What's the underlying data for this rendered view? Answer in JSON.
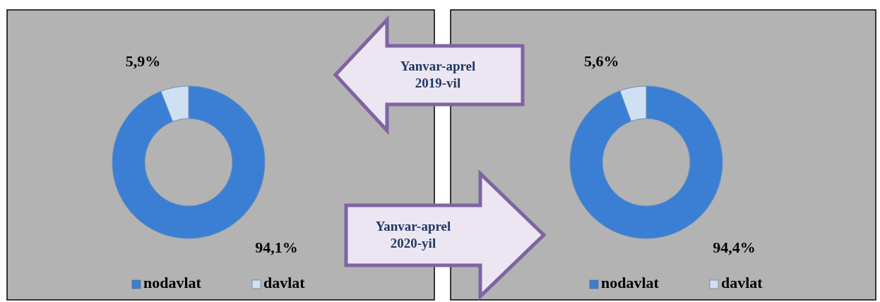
{
  "chart_data": [
    {
      "type": "donut",
      "title": "Yanvar-aprel 2019-vil",
      "categories": [
        "nodavlat",
        "davlat"
      ],
      "values": [
        94.1,
        5.9
      ],
      "colors": [
        "#3b7fd4",
        "#cfe0f2"
      ],
      "value_labels": [
        "94,1%",
        "5,9%"
      ],
      "legend": "bottom"
    },
    {
      "type": "donut",
      "title": "Yanvar-aprel 2020-yil",
      "categories": [
        "nodavlat",
        "davlat"
      ],
      "values": [
        94.4,
        5.6
      ],
      "colors": [
        "#3b7fd4",
        "#cfe0f2"
      ],
      "value_labels": [
        "94,4%",
        "5,6%"
      ],
      "legend": "bottom"
    }
  ]
}
